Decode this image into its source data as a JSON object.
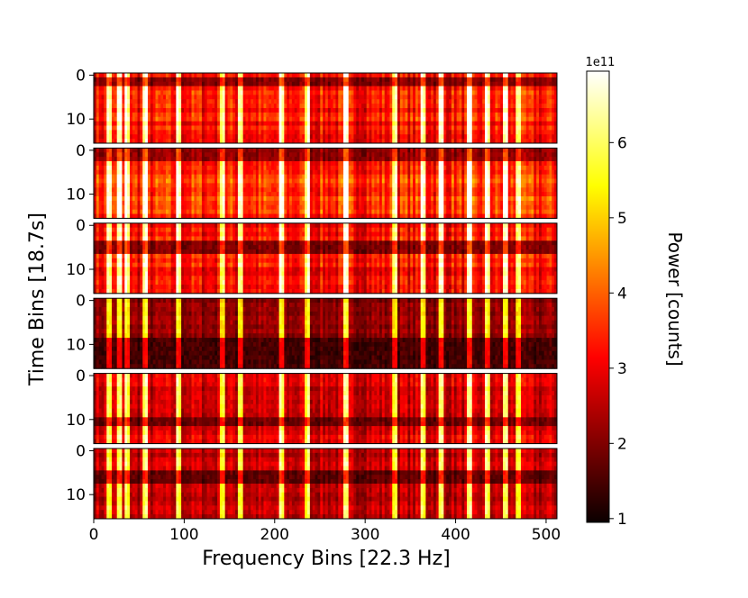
{
  "chart_data": {
    "type": "heatmap",
    "title": "",
    "xlabel": "Frequency Bins [22.3 Hz]",
    "ylabel": "Time Bins [18.7s]",
    "xlim": [
      0,
      512
    ],
    "x_ticks": [
      0,
      100,
      200,
      300,
      400,
      500
    ],
    "panel_count": 6,
    "panel_time_bins": 16,
    "panel_y_ticks": [
      0,
      10
    ],
    "colormap": "hot",
    "colorbar": {
      "label": "Power [counts]",
      "exponent_label": "1e11",
      "range": [
        0.95,
        6.95
      ],
      "ticks": [
        1,
        2,
        3,
        4,
        5,
        6
      ]
    },
    "panels": [
      {
        "index": 1,
        "mean_level": 0.38,
        "dark_rows": [
          1,
          2
        ]
      },
      {
        "index": 2,
        "mean_level": 0.42,
        "dark_rows": [
          0,
          1,
          2
        ]
      },
      {
        "index": 3,
        "mean_level": 0.36,
        "dark_rows": [
          4,
          5,
          6
        ]
      },
      {
        "index": 4,
        "mean_level": 0.18,
        "dark_rows": [
          9,
          10,
          11,
          12,
          13,
          14,
          15
        ]
      },
      {
        "index": 5,
        "mean_level": 0.3,
        "dark_rows": [
          10,
          11
        ]
      },
      {
        "index": 6,
        "mean_level": 0.26,
        "dark_rows": [
          5,
          6,
          7
        ]
      }
    ],
    "bright_frequency_bins": [
      18,
      28,
      36,
      57,
      94,
      143,
      163,
      207,
      236,
      280,
      334,
      364,
      384,
      414,
      436,
      455,
      470
    ]
  }
}
